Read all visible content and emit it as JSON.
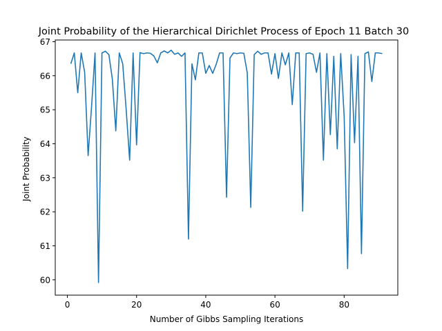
{
  "chart_data": {
    "type": "line",
    "title": "Joint Probability of the Hierarchical Dirichlet Process of Epoch 11 Batch 30",
    "xlabel": "Number of Gibbs Sampling Iterations",
    "ylabel": "Joint Probability",
    "xlim": [
      -3.5,
      95.5
    ],
    "ylim": [
      59.55,
      67.05
    ],
    "xticks": [
      0,
      20,
      40,
      60,
      80
    ],
    "yticks": [
      60,
      61,
      62,
      63,
      64,
      65,
      66,
      67
    ],
    "grid": false,
    "legend": "none",
    "series": [
      {
        "color": "#1f77b4",
        "x": [
          1,
          2,
          3,
          4,
          5,
          6,
          7,
          8,
          9,
          10,
          11,
          12,
          13,
          14,
          15,
          16,
          17,
          18,
          19,
          20,
          21,
          22,
          23,
          24,
          25,
          26,
          27,
          28,
          29,
          30,
          31,
          32,
          33,
          34,
          35,
          36,
          37,
          38,
          39,
          40,
          41,
          42,
          43,
          44,
          45,
          46,
          47,
          48,
          49,
          50,
          51,
          52,
          53,
          54,
          55,
          56,
          57,
          58,
          59,
          60,
          61,
          62,
          63,
          64,
          65,
          66,
          67,
          68,
          69,
          70,
          71,
          72,
          73,
          74,
          75,
          76,
          77,
          78,
          79,
          80,
          81,
          82,
          83,
          84,
          85,
          86,
          87,
          88,
          89,
          90,
          91
        ],
        "values": [
          66.35,
          66.67,
          65.5,
          66.67,
          66.1,
          63.65,
          65.1,
          66.67,
          59.92,
          66.67,
          66.72,
          66.62,
          65.9,
          64.38,
          66.67,
          66.35,
          65.0,
          63.52,
          66.67,
          63.97,
          66.68,
          66.65,
          66.67,
          66.66,
          66.58,
          66.38,
          66.67,
          66.73,
          66.67,
          66.75,
          66.63,
          66.67,
          66.57,
          66.67,
          61.2,
          66.35,
          65.88,
          66.67,
          66.67,
          66.07,
          66.3,
          66.07,
          66.33,
          66.67,
          66.67,
          62.43,
          66.52,
          66.67,
          66.65,
          66.67,
          66.66,
          66.08,
          62.13,
          66.62,
          66.72,
          66.63,
          66.67,
          66.67,
          66.05,
          66.65,
          65.92,
          66.67,
          66.32,
          66.67,
          65.15,
          66.67,
          66.67,
          62.02,
          66.65,
          66.67,
          66.63,
          66.1,
          66.67,
          63.52,
          66.65,
          64.27,
          66.57,
          63.85,
          66.65,
          64.8,
          60.33,
          66.62,
          64.03,
          66.57,
          60.77,
          66.65,
          66.7,
          65.83,
          66.67,
          66.67,
          66.65
        ]
      }
    ]
  }
}
